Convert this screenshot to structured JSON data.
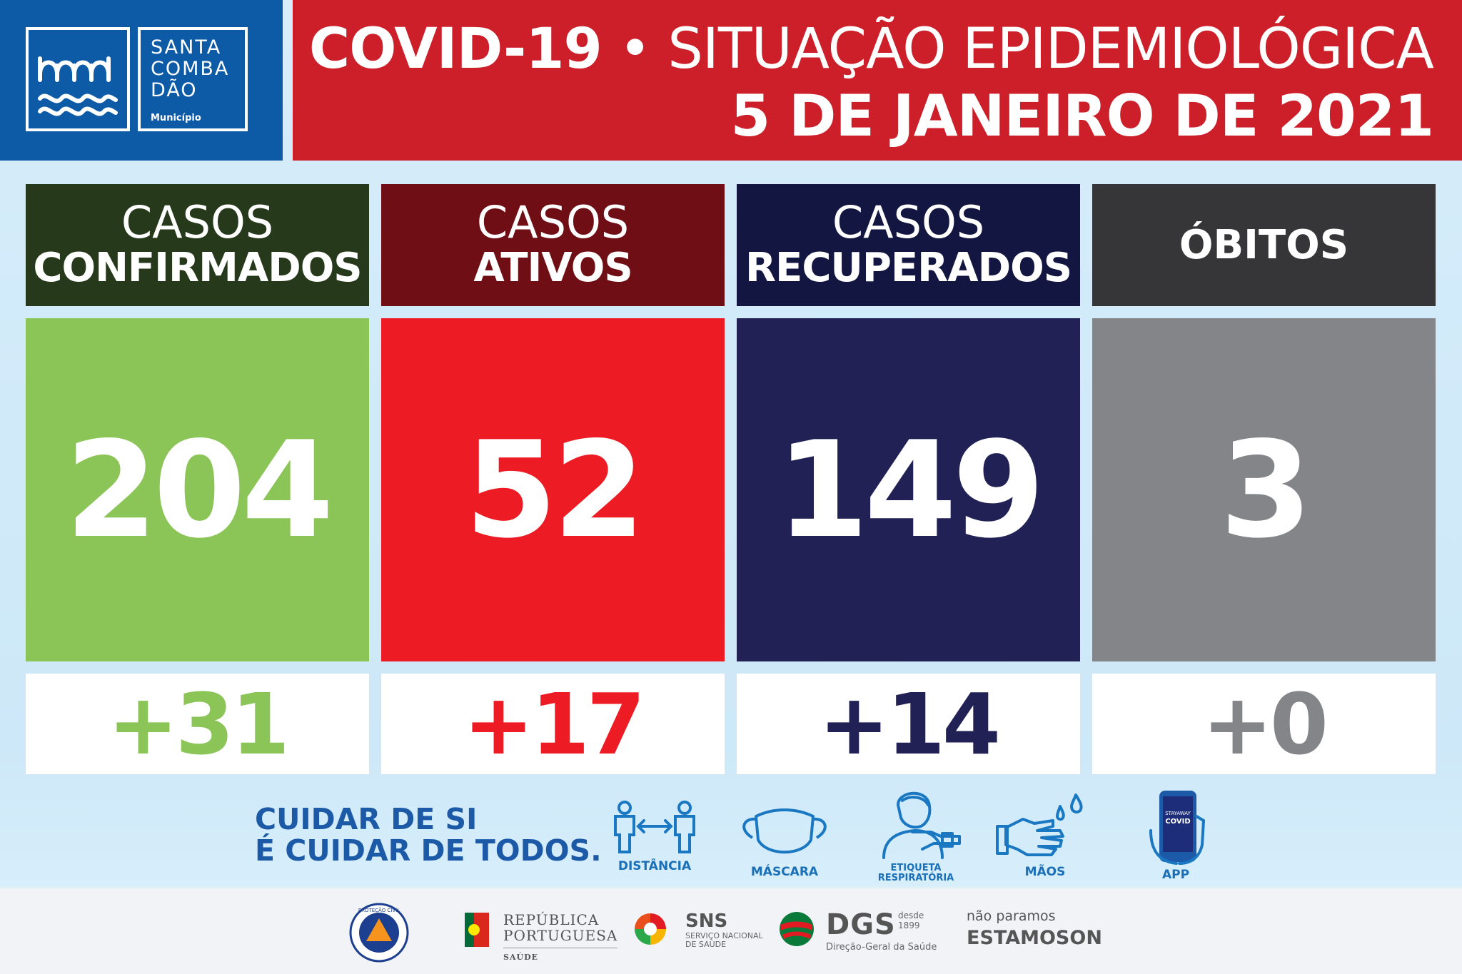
{
  "colors": {
    "header_blue": "#0d5aa6",
    "header_red": "#cc1f29",
    "confirmed_dark": "#26391a",
    "confirmed": "#8bc557",
    "active_dark": "#6f0e15",
    "active": "#ed1c24",
    "recovered_dark": "#131640",
    "recovered": "#222155",
    "deaths_dark": "#363638",
    "deaths": "#848589"
  },
  "logo": {
    "line1": "SANTA",
    "line2": "COMBA",
    "line3": "DÃO",
    "sub": "Município"
  },
  "title": {
    "bold": "COVID-19",
    "separator": "•",
    "rest": "SITUAÇÃO EPIDEMIOLÓGICA",
    "date": "5 DE JANEIRO DE 2021"
  },
  "stats": [
    {
      "label_line1": "CASOS",
      "label_line2": "CONFIRMADOS",
      "value": "204",
      "delta": "+31"
    },
    {
      "label_line1": "CASOS",
      "label_line2": "ATIVOS",
      "value": "52",
      "delta": "+17"
    },
    {
      "label_line1": "CASOS",
      "label_line2": "RECUPERADOS",
      "value": "149",
      "delta": "+14"
    },
    {
      "label_line1": "",
      "label_line2": "ÓBITOS",
      "value": "3",
      "delta": "+0"
    }
  ],
  "slogan": {
    "line1": "CUIDAR DE SI",
    "line2": "É CUIDAR DE TODOS."
  },
  "icons": [
    {
      "name": "distance-icon",
      "label": "DISTÂNCIA"
    },
    {
      "name": "mask-icon",
      "label": "MÁSCARA"
    },
    {
      "name": "respiratory-etiquette-icon",
      "label_line1": "ETIQUETA",
      "label_line2": "RESPIRATÓRIA"
    },
    {
      "name": "hands-icon",
      "label": "MÃOS"
    },
    {
      "name": "app-icon",
      "label": "APP",
      "screen_line1": "STAYAWAY",
      "screen_line2": "COVID"
    }
  ],
  "footer": {
    "republica_line1": "REPÚBLICA",
    "republica_line2": "PORTUGUESA",
    "republica_sub": "SAÚDE",
    "sns": "SNS",
    "sns_sub1": "SERVIÇO NACIONAL",
    "sns_sub2": "DE SAÚDE",
    "dgs": "DGS",
    "dgs_desde": "desde",
    "dgs_year": "1899",
    "dgs_sub": "Direção-Geral da Saúde",
    "slogan1": "não paramos",
    "slogan2_a": "ESTAMOS",
    "slogan2_b": "ON",
    "civil_protection": "PROTEÇÃO CIVIL"
  }
}
